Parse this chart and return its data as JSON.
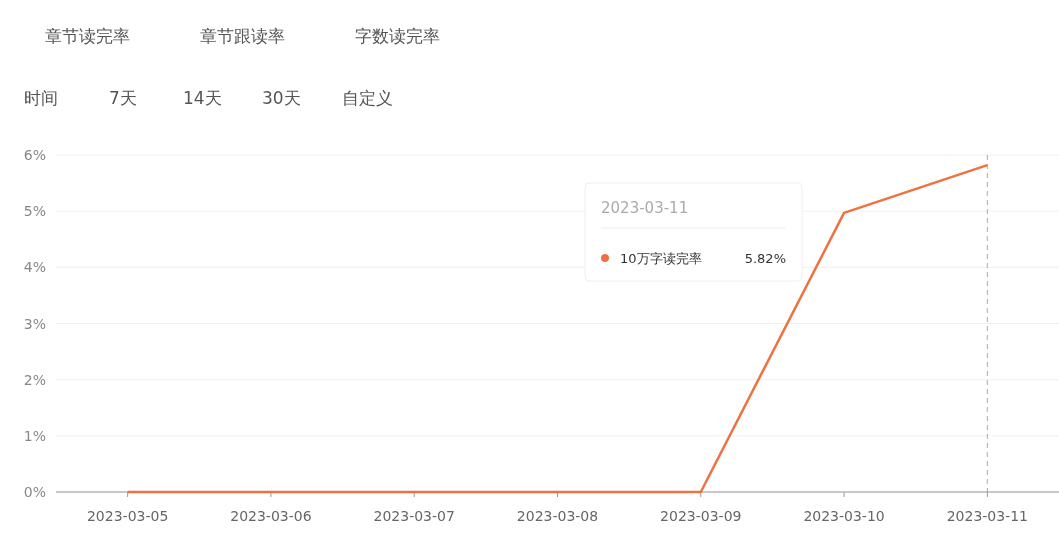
{
  "chart_data": {
    "type": "line",
    "categories": [
      "2023-03-05",
      "2023-03-06",
      "2023-03-07",
      "2023-03-08",
      "2023-03-09",
      "2023-03-10",
      "2023-03-11"
    ],
    "series": [
      {
        "name": "10万字读完率",
        "color": "#ee7241",
        "values": [
          0,
          0,
          0,
          0,
          0,
          4.97,
          5.82
        ]
      }
    ],
    "ylim": [
      0,
      6
    ],
    "yticks": [
      {
        "value": 0,
        "label": "0%"
      },
      {
        "value": 1,
        "label": "1%"
      },
      {
        "value": 2,
        "label": "2%"
      },
      {
        "value": 3,
        "label": "3%"
      },
      {
        "value": 4,
        "label": "4%"
      },
      {
        "value": 5,
        "label": "5%"
      },
      {
        "value": 6,
        "label": "6%"
      }
    ],
    "grid": "y",
    "legend": "top right",
    "marker": "none",
    "ref_lines": [
      {
        "axis": "x",
        "value": "2023-03-11",
        "label": "2023-03-11",
        "color": "#aaaaaa",
        "line_style": "dashed"
      }
    ],
    "annotations": [
      "章节读完率",
      "章节跟读率",
      "字数读完率",
      "时间",
      "7天",
      "14天",
      "30天",
      "自定义",
      "5.82%"
    ]
  }
}
